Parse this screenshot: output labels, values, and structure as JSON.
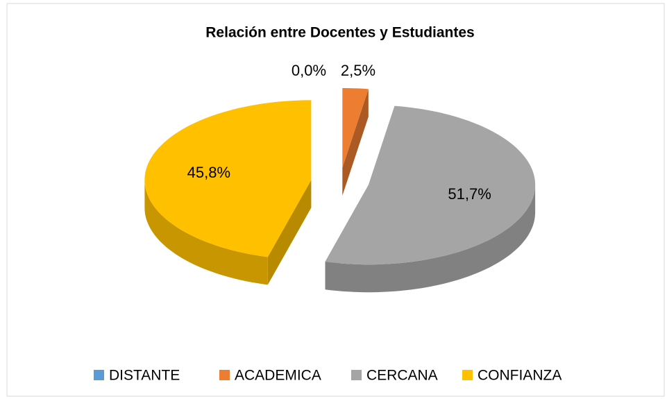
{
  "chart_data": {
    "type": "pie",
    "title": "Relación entre Docentes y Estudiantes",
    "categories": [
      "DISTANTE",
      "ACADEMICA",
      "CERCANA",
      "CONFIANZA"
    ],
    "values": [
      0,
      2.5,
      51.7,
      45.8
    ],
    "value_labels": [
      "0,0%",
      "2,5%",
      "51,7%",
      "45,8%"
    ],
    "colors": [
      "#5b9bd5",
      "#ed7d31",
      "#a5a5a5",
      "#ffc000"
    ],
    "legend": "bottom"
  }
}
